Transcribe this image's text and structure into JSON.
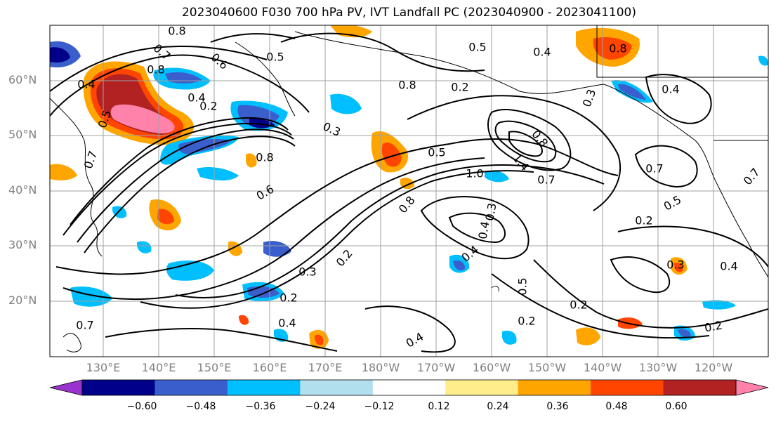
{
  "title": "2023040600 F030 700 hPa PV, IVT Landfall PC (2023040900 - 2023041100)",
  "lat_labels": [
    "60°N",
    "50°N",
    "40°N",
    "30°N",
    "20°N"
  ],
  "lon_labels": [
    "130°E",
    "140°E",
    "150°E",
    "160°E",
    "170°E",
    "180°W",
    "170°W",
    "160°W",
    "150°W",
    "140°W",
    "130°W",
    "120°W"
  ],
  "colorbar": {
    "ticks": [
      "−0.60",
      "−0.48",
      "−0.36",
      "−0.24",
      "−0.12",
      "0.12",
      "0.24",
      "0.36",
      "0.48",
      "0.60"
    ],
    "colors": [
      "#9a32cd",
      "#00008b",
      "#3a5fcd",
      "#00bfff",
      "#b2dfee",
      "#ffffff",
      "#ffec8b",
      "#ffa500",
      "#ff4500",
      "#b22222",
      "#ff82ab"
    ]
  },
  "contour_labels": [
    "0.8",
    "0.6",
    "0.5",
    "0.4",
    "0.7",
    "0.8",
    "0.4",
    "0.2",
    "0.5",
    "0.7",
    "0.8",
    "0.2",
    "0.5",
    "0.4",
    "0.8",
    "0.4",
    "0.3",
    "0.6",
    "0.8",
    "0.5",
    "1.0",
    "1.4",
    "0.8",
    "0.7",
    "0.3",
    "0.7",
    "0.5",
    "0.2",
    "0.3",
    "0.4",
    "0.4",
    "0.8",
    "0.3",
    "0.2",
    "0.2",
    "0.4",
    "0.5",
    "0.2",
    "0.2",
    "0.4",
    "0.2",
    "0.4",
    "0.7",
    "0.7",
    "0.3"
  ]
}
